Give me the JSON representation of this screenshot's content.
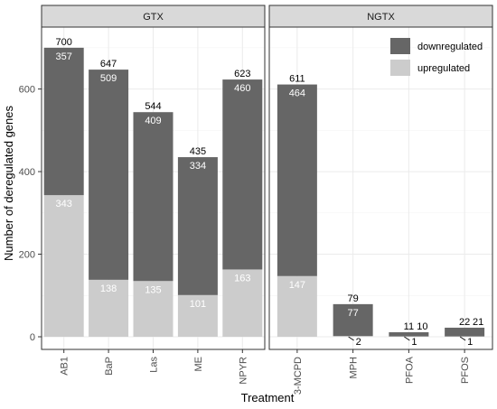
{
  "chart_data": {
    "type": "bar",
    "stacked": true,
    "ylabel": "Number of deregulated genes",
    "xlabel": "Treatment",
    "ylim": [
      0,
      750
    ],
    "yticks": [
      0,
      200,
      400,
      600
    ],
    "grid": true,
    "legend": {
      "position": "top-right",
      "entries": [
        {
          "label": "downregulated",
          "color": "#666666"
        },
        {
          "label": "upregulated",
          "color": "#cccccc"
        }
      ]
    },
    "colors": {
      "downregulated": "#666666",
      "upregulated": "#cccccc",
      "panel_bg": "#ffffff",
      "strip_bg": "#d9d9d9",
      "grid": "#ebebeb"
    },
    "panels": [
      {
        "name": "GTX",
        "categories": [
          "AB1",
          "BaP",
          "Las",
          "ME",
          "NPYR"
        ],
        "series": [
          {
            "name": "upregulated",
            "values": [
              343,
              138,
              135,
              101,
              163
            ]
          },
          {
            "name": "downregulated",
            "values": [
              357,
              509,
              409,
              334,
              460
            ]
          }
        ],
        "totals": [
          700,
          647,
          544,
          435,
          623
        ]
      },
      {
        "name": "NGTX",
        "categories": [
          "3-MCPD",
          "MPH",
          "PFOA",
          "PFOS"
        ],
        "series": [
          {
            "name": "upregulated",
            "values": [
              147,
              2,
              1,
              1
            ]
          },
          {
            "name": "downregulated",
            "values": [
              464,
              77,
              10,
              21
            ]
          }
        ],
        "totals": [
          611,
          79,
          11,
          22
        ]
      }
    ]
  }
}
